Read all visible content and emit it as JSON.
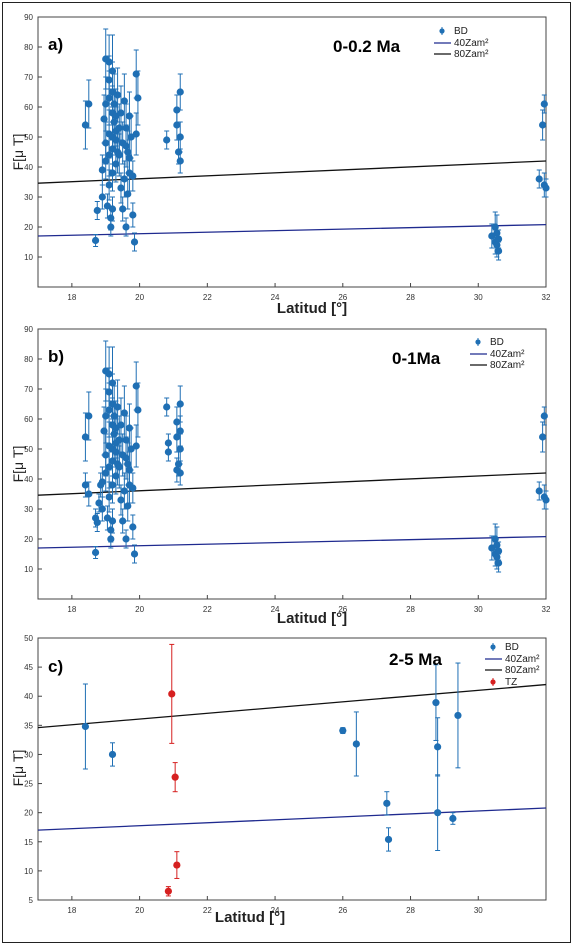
{
  "chart_data": [
    {
      "type": "scatter",
      "panel_label": "a)",
      "period": "0-0.2 Ma",
      "xlabel": "Latitud [°]",
      "ylabel": "F[μ T]",
      "xlim": [
        17,
        32
      ],
      "ylim": [
        0,
        90
      ],
      "xticks": [
        18,
        20,
        22,
        24,
        26,
        28,
        30,
        32
      ],
      "yticks": [
        10,
        20,
        30,
        40,
        50,
        60,
        70,
        80,
        90
      ],
      "legend": [
        "BD",
        "40Zam²",
        "80Zam²"
      ],
      "legend_position": "top-right",
      "colors": {
        "BD": "#1f6fb4",
        "40Zam2": "#1f2a8f",
        "80Zam2": "#111111",
        "TZ": "#d62020"
      },
      "lines": [
        {
          "name": "40Zam²",
          "x": [
            17,
            32
          ],
          "y": [
            17.0,
            20.8
          ]
        },
        {
          "name": "80Zam²",
          "x": [
            17,
            32
          ],
          "y": [
            34.6,
            42.0
          ]
        }
      ],
      "series": [
        {
          "name": "BD",
          "points": [
            [
              18.4,
              54,
              8
            ],
            [
              18.5,
              61,
              8
            ],
            [
              18.7,
              15.5,
              2
            ],
            [
              18.75,
              25.5,
              3
            ],
            [
              18.9,
              39,
              5
            ],
            [
              18.9,
              30,
              4
            ],
            [
              18.95,
              56,
              8
            ],
            [
              19.0,
              76,
              10
            ],
            [
              19.0,
              61,
              9
            ],
            [
              19.0,
              48,
              7
            ],
            [
              19.0,
              42,
              6
            ],
            [
              19.05,
              27,
              4
            ],
            [
              19.1,
              75,
              9
            ],
            [
              19.1,
              69,
              8
            ],
            [
              19.1,
              63,
              9
            ],
            [
              19.1,
              51,
              8
            ],
            [
              19.1,
              44,
              7
            ],
            [
              19.1,
              34,
              5
            ],
            [
              19.15,
              23,
              4
            ],
            [
              19.15,
              20,
              3
            ],
            [
              19.2,
              72,
              12
            ],
            [
              19.2,
              65,
              10
            ],
            [
              19.2,
              58,
              9
            ],
            [
              19.2,
              50,
              9
            ],
            [
              19.2,
              46,
              8
            ],
            [
              19.2,
              38,
              6
            ],
            [
              19.2,
              26,
              4
            ],
            [
              19.25,
              61,
              10
            ],
            [
              19.25,
              55,
              9
            ],
            [
              19.3,
              57,
              9
            ],
            [
              19.3,
              49,
              8
            ],
            [
              19.3,
              52,
              8
            ],
            [
              19.3,
              41,
              6
            ],
            [
              19.35,
              64,
              9
            ],
            [
              19.35,
              45,
              7
            ],
            [
              19.4,
              53,
              8
            ],
            [
              19.4,
              44,
              7
            ],
            [
              19.45,
              58,
              9
            ],
            [
              19.45,
              33,
              5
            ],
            [
              19.5,
              48,
              7
            ],
            [
              19.5,
              26,
              4
            ],
            [
              19.55,
              62,
              9
            ],
            [
              19.55,
              36,
              6
            ],
            [
              19.6,
              53,
              8
            ],
            [
              19.6,
              47,
              7
            ],
            [
              19.6,
              20,
              3
            ],
            [
              19.65,
              45,
              7
            ],
            [
              19.65,
              31,
              5
            ],
            [
              19.7,
              57,
              8
            ],
            [
              19.7,
              43,
              6
            ],
            [
              19.7,
              38,
              6
            ],
            [
              19.75,
              50,
              7
            ],
            [
              19.8,
              37,
              5
            ],
            [
              19.8,
              24,
              4
            ],
            [
              19.85,
              15,
              3
            ],
            [
              19.9,
              71,
              8
            ],
            [
              19.9,
              51,
              7
            ],
            [
              19.95,
              63,
              9
            ],
            [
              20.8,
              49,
              3
            ],
            [
              21.1,
              59,
              5
            ],
            [
              21.1,
              54,
              5
            ],
            [
              21.15,
              45,
              4
            ],
            [
              21.2,
              65,
              6
            ],
            [
              21.2,
              50,
              5
            ],
            [
              21.2,
              42,
              4
            ],
            [
              30.4,
              17,
              4
            ],
            [
              30.5,
              20,
              5
            ],
            [
              30.5,
              15,
              4
            ],
            [
              30.55,
              18,
              6
            ],
            [
              30.55,
              14,
              4
            ],
            [
              30.6,
              12,
              3
            ],
            [
              30.6,
              16,
              3
            ],
            [
              31.8,
              36,
              3
            ],
            [
              31.9,
              54,
              5
            ],
            [
              31.95,
              61,
              3
            ],
            [
              31.95,
              34,
              4
            ],
            [
              32.0,
              33,
              3
            ]
          ]
        }
      ]
    },
    {
      "type": "scatter",
      "panel_label": "b)",
      "period": "0-1Ma",
      "xlabel": "Latitud [°]",
      "ylabel": "F[μ T]",
      "xlim": [
        17,
        32
      ],
      "ylim": [
        0,
        90
      ],
      "xticks": [
        18,
        20,
        22,
        24,
        26,
        28,
        30,
        32
      ],
      "yticks": [
        10,
        20,
        30,
        40,
        50,
        60,
        70,
        80,
        90
      ],
      "legend": [
        "BD",
        "40Zam²",
        "80Zam²"
      ],
      "legend_position": "top-right",
      "lines": [
        {
          "name": "40Zam²",
          "x": [
            17,
            32
          ],
          "y": [
            17.0,
            20.8
          ]
        },
        {
          "name": "80Zam²",
          "x": [
            17,
            32
          ],
          "y": [
            34.6,
            42.0
          ]
        }
      ],
      "series": [
        {
          "name": "BD",
          "points": [
            [
              18.4,
              54,
              8
            ],
            [
              18.4,
              38,
              4
            ],
            [
              18.5,
              61,
              8
            ],
            [
              18.5,
              35,
              4
            ],
            [
              18.7,
              15.5,
              2
            ],
            [
              18.7,
              27,
              3
            ],
            [
              18.75,
              25.5,
              3
            ],
            [
              18.8,
              32,
              3
            ],
            [
              18.85,
              38,
              4
            ],
            [
              18.9,
              39,
              5
            ],
            [
              18.9,
              30,
              4
            ],
            [
              18.95,
              56,
              8
            ],
            [
              19.0,
              76,
              10
            ],
            [
              19.0,
              61,
              9
            ],
            [
              19.0,
              48,
              7
            ],
            [
              19.0,
              42,
              6
            ],
            [
              19.05,
              27,
              4
            ],
            [
              19.1,
              75,
              9
            ],
            [
              19.1,
              69,
              8
            ],
            [
              19.1,
              63,
              9
            ],
            [
              19.1,
              51,
              8
            ],
            [
              19.1,
              44,
              7
            ],
            [
              19.1,
              34,
              5
            ],
            [
              19.15,
              23,
              4
            ],
            [
              19.15,
              20,
              3
            ],
            [
              19.2,
              72,
              12
            ],
            [
              19.2,
              65,
              10
            ],
            [
              19.2,
              58,
              9
            ],
            [
              19.2,
              50,
              9
            ],
            [
              19.2,
              46,
              8
            ],
            [
              19.2,
              38,
              6
            ],
            [
              19.2,
              26,
              4
            ],
            [
              19.25,
              61,
              10
            ],
            [
              19.25,
              55,
              9
            ],
            [
              19.3,
              57,
              9
            ],
            [
              19.3,
              49,
              8
            ],
            [
              19.3,
              52,
              8
            ],
            [
              19.3,
              41,
              6
            ],
            [
              19.35,
              64,
              9
            ],
            [
              19.35,
              45,
              7
            ],
            [
              19.4,
              53,
              8
            ],
            [
              19.4,
              44,
              7
            ],
            [
              19.45,
              58,
              9
            ],
            [
              19.45,
              33,
              5
            ],
            [
              19.5,
              48,
              7
            ],
            [
              19.5,
              26,
              4
            ],
            [
              19.55,
              62,
              9
            ],
            [
              19.55,
              36,
              6
            ],
            [
              19.6,
              53,
              8
            ],
            [
              19.6,
              47,
              7
            ],
            [
              19.6,
              20,
              3
            ],
            [
              19.65,
              45,
              7
            ],
            [
              19.65,
              31,
              5
            ],
            [
              19.7,
              57,
              8
            ],
            [
              19.7,
              43,
              6
            ],
            [
              19.7,
              38,
              6
            ],
            [
              19.75,
              50,
              7
            ],
            [
              19.8,
              37,
              5
            ],
            [
              19.8,
              24,
              4
            ],
            [
              19.85,
              15,
              3
            ],
            [
              19.9,
              71,
              8
            ],
            [
              19.9,
              51,
              7
            ],
            [
              19.95,
              63,
              9
            ],
            [
              20.8,
              64,
              3
            ],
            [
              20.85,
              52,
              3
            ],
            [
              20.85,
              49,
              3
            ],
            [
              21.1,
              59,
              5
            ],
            [
              21.1,
              54,
              5
            ],
            [
              21.1,
              43,
              4
            ],
            [
              21.15,
              45,
              4
            ],
            [
              21.2,
              65,
              6
            ],
            [
              21.2,
              56,
              5
            ],
            [
              21.2,
              50,
              5
            ],
            [
              21.2,
              42,
              4
            ],
            [
              30.4,
              17,
              4
            ],
            [
              30.5,
              20,
              5
            ],
            [
              30.5,
              15,
              4
            ],
            [
              30.55,
              18,
              6
            ],
            [
              30.55,
              14,
              4
            ],
            [
              30.6,
              12,
              3
            ],
            [
              30.6,
              16,
              3
            ],
            [
              31.8,
              36,
              3
            ],
            [
              31.9,
              54,
              5
            ],
            [
              31.95,
              61,
              3
            ],
            [
              31.95,
              34,
              4
            ],
            [
              32.0,
              33,
              3
            ]
          ]
        }
      ]
    },
    {
      "type": "scatter",
      "panel_label": "c)",
      "period": "2-5 Ma",
      "xlabel": "Latitud [°]",
      "ylabel": "F[μ T]",
      "xlim": [
        17,
        32
      ],
      "ylim": [
        5,
        50
      ],
      "xticks": [
        18,
        20,
        22,
        24,
        26,
        28,
        30
      ],
      "yticks": [
        5,
        10,
        15,
        20,
        25,
        30,
        35,
        40,
        45,
        50
      ],
      "legend": [
        "BD",
        "40Zam²",
        "80Zam²",
        "TZ"
      ],
      "legend_position": "top-right",
      "lines": [
        {
          "name": "40Zam²",
          "x": [
            17,
            32
          ],
          "y": [
            17.0,
            20.8
          ]
        },
        {
          "name": "80Zam²",
          "x": [
            17,
            32
          ],
          "y": [
            34.6,
            42.0
          ]
        }
      ],
      "series": [
        {
          "name": "BD",
          "points": [
            [
              18.4,
              34.8,
              7.3
            ],
            [
              19.2,
              30,
              2
            ],
            [
              26.0,
              34.1,
              0.5
            ],
            [
              26.4,
              31.8,
              5.5
            ],
            [
              27.3,
              21.6,
              2
            ],
            [
              27.35,
              15.4,
              2
            ],
            [
              28.75,
              38.9,
              6.5
            ],
            [
              28.8,
              31.3,
              5
            ],
            [
              28.8,
              20,
              6.5
            ],
            [
              29.25,
              19,
              1
            ],
            [
              29.4,
              36.7,
              9
            ]
          ]
        },
        {
          "name": "TZ",
          "points": [
            [
              20.85,
              6.5,
              0.8
            ],
            [
              20.95,
              40.4,
              8.5
            ],
            [
              21.05,
              26.1,
              2.5
            ],
            [
              21.1,
              11,
              2.3
            ]
          ]
        }
      ]
    }
  ]
}
